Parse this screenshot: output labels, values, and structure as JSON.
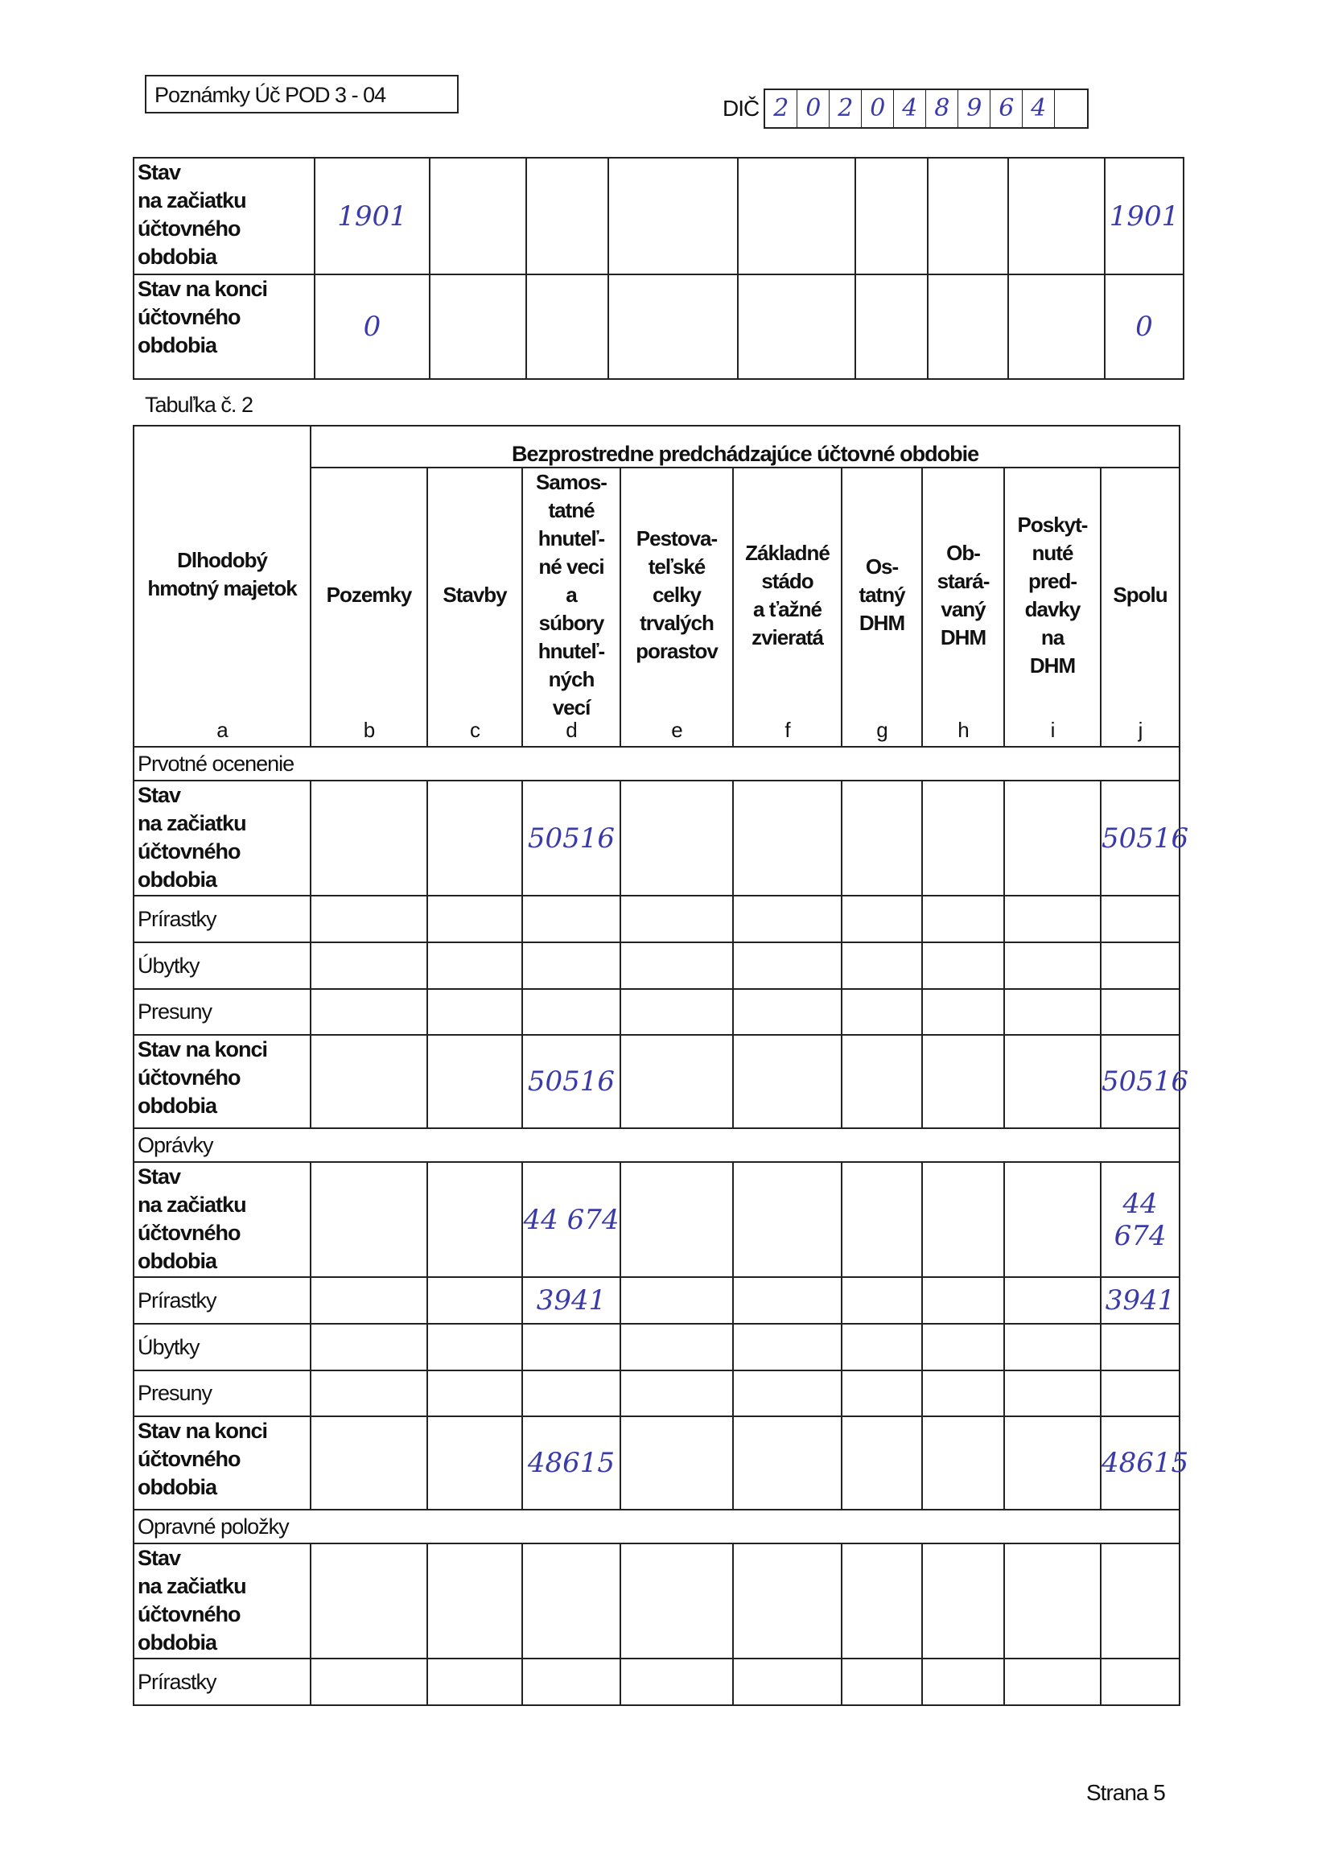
{
  "header": {
    "form_title": "Poznámky Úč POD 3 - 04",
    "dic_label": "DIČ",
    "dic_digits": [
      "2",
      "0",
      "2",
      "0",
      "4",
      "8",
      "9",
      "6",
      "4",
      ""
    ]
  },
  "table1": {
    "rows": [
      {
        "label": "Stav\nna začiatku\núčtovného\nobdobia",
        "values": [
          "1901",
          "",
          "",
          "",
          "",
          "",
          "",
          "",
          "1901"
        ]
      },
      {
        "label": "Stav na konci\núčtovného\nobdobia",
        "values": [
          "0",
          "",
          "",
          "",
          "",
          "",
          "",
          "",
          "0"
        ]
      }
    ]
  },
  "table2": {
    "caption": "Tabuľka č. 2",
    "group_header": "Bezprostredne predchádzajúce účtovné obdobie",
    "row_header": {
      "label": "Dlhodobý\nhmotný majetok",
      "letter": "a"
    },
    "columns": [
      {
        "label": "Pozemky",
        "letter": "b"
      },
      {
        "label": "Stavby",
        "letter": "c"
      },
      {
        "label": "Samos-\ntatné\nhnuteľ-\nné veci\na\nsúbory\nhnuteľ-\nných\nvecí",
        "letter": "d"
      },
      {
        "label": "Pestova-\nteľské\ncelky\ntrvalých\nporastov",
        "letter": "e"
      },
      {
        "label": "Základné\nstádo\na ťažné\nzvieratá",
        "letter": "f"
      },
      {
        "label": "Os-\ntatný\nDHM",
        "letter": "g"
      },
      {
        "label": "Ob-\nstará-\nvaný\nDHM",
        "letter": "h"
      },
      {
        "label": "Poskyt-\nnuté\npred-\ndavky\nna\nDHM",
        "letter": "i"
      },
      {
        "label": "Spolu",
        "letter": "j"
      }
    ],
    "sections": [
      {
        "title": "Prvotné ocenenie",
        "rows": [
          {
            "label": "Stav\nna začiatku\núčtovného\nobdobia",
            "bold": true,
            "values": [
              "",
              "",
              "50516",
              "",
              "",
              "",
              "",
              "",
              "50516"
            ]
          },
          {
            "label": "Prírastky",
            "bold": false,
            "values": [
              "",
              "",
              "",
              "",
              "",
              "",
              "",
              "",
              ""
            ]
          },
          {
            "label": "Úbytky",
            "bold": false,
            "values": [
              "",
              "",
              "",
              "",
              "",
              "",
              "",
              "",
              ""
            ]
          },
          {
            "label": "Presuny",
            "bold": false,
            "values": [
              "",
              "",
              "",
              "",
              "",
              "",
              "",
              "",
              ""
            ]
          },
          {
            "label": "Stav na konci\núčtovného\nobdobia",
            "bold": true,
            "values": [
              "",
              "",
              "50516",
              "",
              "",
              "",
              "",
              "",
              "50516"
            ]
          }
        ]
      },
      {
        "title": "Oprávky",
        "rows": [
          {
            "label": "Stav\nna začiatku\núčtovného\nobdobia",
            "bold": true,
            "values": [
              "",
              "",
              "44 674",
              "",
              "",
              "",
              "",
              "",
              "44 674"
            ]
          },
          {
            "label": "Prírastky",
            "bold": false,
            "values": [
              "",
              "",
              "3941",
              "",
              "",
              "",
              "",
              "",
              "3941"
            ]
          },
          {
            "label": "Úbytky",
            "bold": false,
            "values": [
              "",
              "",
              "",
              "",
              "",
              "",
              "",
              "",
              ""
            ]
          },
          {
            "label": "Presuny",
            "bold": false,
            "values": [
              "",
              "",
              "",
              "",
              "",
              "",
              "",
              "",
              ""
            ]
          },
          {
            "label": "Stav na konci\núčtovného\nobdobia",
            "bold": true,
            "values": [
              "",
              "",
              "48615",
              "",
              "",
              "",
              "",
              "",
              "48615"
            ]
          }
        ]
      },
      {
        "title": "Opravné položky",
        "rows": [
          {
            "label": "Stav\nna začiatku\núčtovného\nobdobia",
            "bold": true,
            "values": [
              "",
              "",
              "",
              "",
              "",
              "",
              "",
              "",
              ""
            ]
          },
          {
            "label": "Prírastky",
            "bold": false,
            "values": [
              "",
              "",
              "",
              "",
              "",
              "",
              "",
              "",
              ""
            ]
          }
        ]
      }
    ]
  },
  "footer": {
    "page": "Strana 5"
  }
}
